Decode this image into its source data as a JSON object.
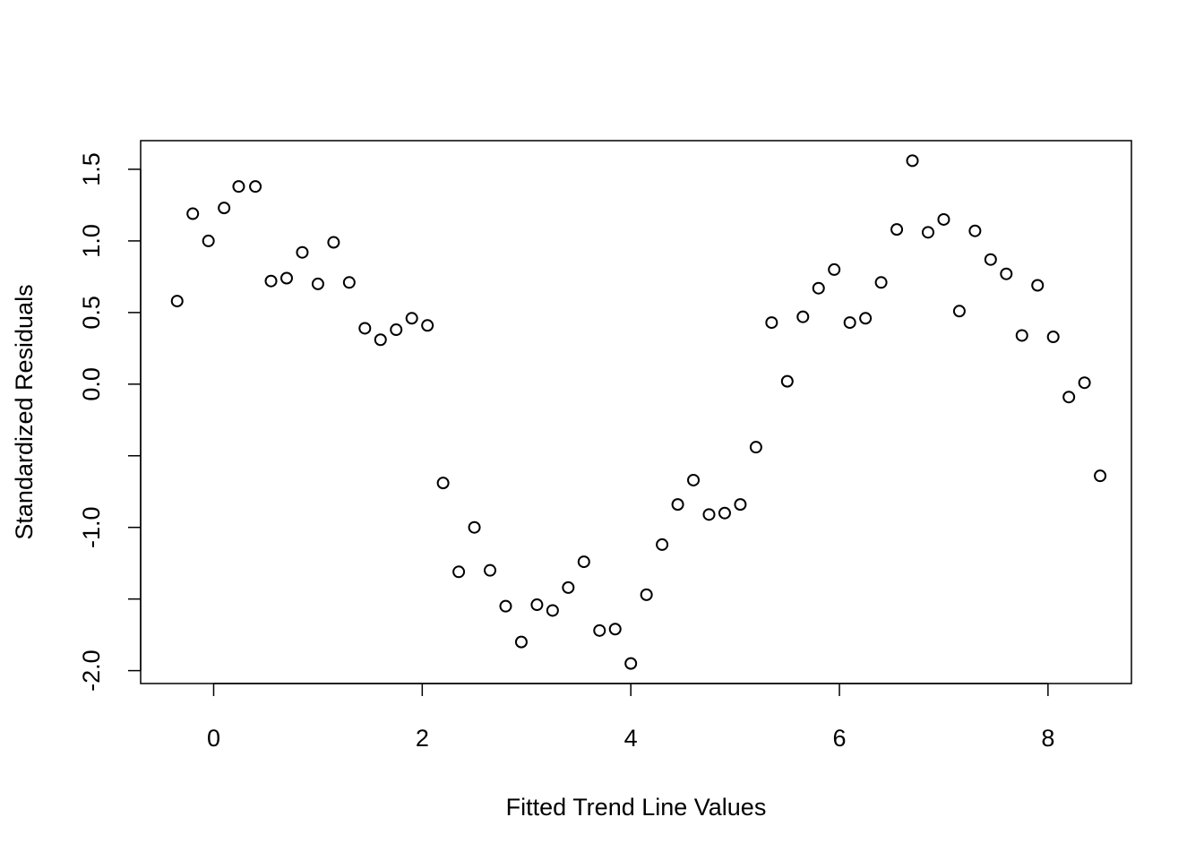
{
  "chart_data": {
    "type": "scatter",
    "title": "",
    "xlabel": "Fitted Trend Line Values",
    "ylabel": "Standardized Residuals",
    "xlim": [
      -0.7,
      8.8
    ],
    "ylim": [
      -2.09,
      1.7
    ],
    "x_ticks": [
      0,
      2,
      4,
      6,
      8
    ],
    "x_tick_labels": [
      "0",
      "2",
      "4",
      "6",
      "8"
    ],
    "y_ticks": [
      -2.0,
      -1.5,
      -1.0,
      -0.5,
      0.0,
      0.5,
      1.0,
      1.5
    ],
    "y_tick_labels": [
      "-2.0",
      "",
      "-1.0",
      "",
      "0.0",
      "0.5",
      "1.0",
      "1.5"
    ],
    "grid": false,
    "legend": "none",
    "marker": "open-circle",
    "color": "#000000",
    "points": [
      {
        "x": -0.35,
        "y": 0.58
      },
      {
        "x": -0.2,
        "y": 1.19
      },
      {
        "x": -0.05,
        "y": 1.0
      },
      {
        "x": 0.1,
        "y": 1.23
      },
      {
        "x": 0.24,
        "y": 1.38
      },
      {
        "x": 0.4,
        "y": 1.38
      },
      {
        "x": 0.55,
        "y": 0.72
      },
      {
        "x": 0.7,
        "y": 0.74
      },
      {
        "x": 0.85,
        "y": 0.92
      },
      {
        "x": 1.0,
        "y": 0.7
      },
      {
        "x": 1.15,
        "y": 0.99
      },
      {
        "x": 1.3,
        "y": 0.71
      },
      {
        "x": 1.45,
        "y": 0.39
      },
      {
        "x": 1.6,
        "y": 0.31
      },
      {
        "x": 1.75,
        "y": 0.38
      },
      {
        "x": 1.9,
        "y": 0.46
      },
      {
        "x": 2.05,
        "y": 0.41
      },
      {
        "x": 2.2,
        "y": -0.69
      },
      {
        "x": 2.35,
        "y": -1.31
      },
      {
        "x": 2.5,
        "y": -1.0
      },
      {
        "x": 2.65,
        "y": -1.3
      },
      {
        "x": 2.8,
        "y": -1.55
      },
      {
        "x": 2.95,
        "y": -1.8
      },
      {
        "x": 3.1,
        "y": -1.54
      },
      {
        "x": 3.25,
        "y": -1.58
      },
      {
        "x": 3.4,
        "y": -1.42
      },
      {
        "x": 3.55,
        "y": -1.24
      },
      {
        "x": 3.7,
        "y": -1.72
      },
      {
        "x": 3.85,
        "y": -1.71
      },
      {
        "x": 4.0,
        "y": -1.95
      },
      {
        "x": 4.15,
        "y": -1.47
      },
      {
        "x": 4.3,
        "y": -1.12
      },
      {
        "x": 4.45,
        "y": -0.84
      },
      {
        "x": 4.6,
        "y": -0.67
      },
      {
        "x": 4.75,
        "y": -0.91
      },
      {
        "x": 4.9,
        "y": -0.9
      },
      {
        "x": 5.05,
        "y": -0.84
      },
      {
        "x": 5.2,
        "y": -0.44
      },
      {
        "x": 5.35,
        "y": 0.43
      },
      {
        "x": 5.5,
        "y": 0.02
      },
      {
        "x": 5.65,
        "y": 0.47
      },
      {
        "x": 5.8,
        "y": 0.67
      },
      {
        "x": 5.95,
        "y": 0.8
      },
      {
        "x": 6.1,
        "y": 0.43
      },
      {
        "x": 6.25,
        "y": 0.46
      },
      {
        "x": 6.4,
        "y": 0.71
      },
      {
        "x": 6.55,
        "y": 1.08
      },
      {
        "x": 6.7,
        "y": 1.56
      },
      {
        "x": 6.85,
        "y": 1.06
      },
      {
        "x": 7.0,
        "y": 1.15
      },
      {
        "x": 7.15,
        "y": 0.51
      },
      {
        "x": 7.3,
        "y": 1.07
      },
      {
        "x": 7.45,
        "y": 0.87
      },
      {
        "x": 7.6,
        "y": 0.77
      },
      {
        "x": 7.75,
        "y": 0.34
      },
      {
        "x": 7.9,
        "y": 0.69
      },
      {
        "x": 8.05,
        "y": 0.33
      },
      {
        "x": 8.2,
        "y": -0.09
      },
      {
        "x": 8.35,
        "y": 0.01
      },
      {
        "x": 8.5,
        "y": -0.64
      }
    ]
  }
}
